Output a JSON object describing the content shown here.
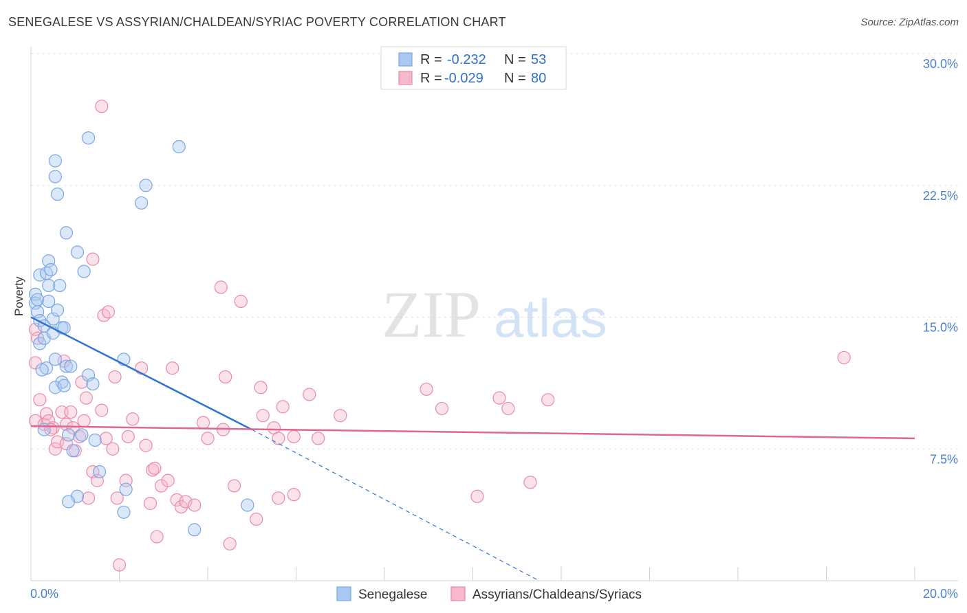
{
  "title": "SENEGALESE VS ASSYRIAN/CHALDEAN/SYRIAC POVERTY CORRELATION CHART",
  "source": "Source: ZipAtlas.com",
  "watermark": {
    "part1": "ZIP",
    "part2": "atlas"
  },
  "colors": {
    "blue_fill": "#aac8f0",
    "blue_stroke": "#7aa6e0",
    "blue_line": "#2e74d0",
    "pink_fill": "#f5b8cc",
    "pink_stroke": "#e88aa8",
    "pink_line": "#e0668f",
    "tick_text": "#4a7fd0"
  },
  "legend": {
    "rows": [
      {
        "r_label": "R =",
        "r_value": "-0.232",
        "n_label": "N =",
        "n_value": "53"
      },
      {
        "r_label": "R =",
        "r_value": "-0.029",
        "n_label": "N =",
        "n_value": "80"
      }
    ]
  },
  "chart_data": {
    "type": "scatter",
    "title": "SENEGALESE VS ASSYRIAN/CHALDEAN/SYRIAC POVERTY CORRELATION CHART",
    "xlabel": "",
    "ylabel": "Poverty",
    "xlim": [
      0,
      20
    ],
    "ylim": [
      0,
      30
    ],
    "x_tick_labels": [
      "0.0%",
      "20.0%"
    ],
    "y_ticks": [
      7.5,
      15.0,
      22.5,
      30.0
    ],
    "y_tick_labels": [
      "7.5%",
      "15.0%",
      "22.5%",
      "30.0%"
    ],
    "grid": true,
    "legend_position": "top-center",
    "series": [
      {
        "name": "Senegalese",
        "r": -0.232,
        "n": 53,
        "trend": {
          "x": [
            0.0,
            5.0
          ],
          "y": [
            15.0,
            8.6
          ],
          "dashed_to": [
            11.5,
            0
          ]
        },
        "points": [
          [
            0.1,
            16.3
          ],
          [
            0.1,
            15.8
          ],
          [
            0.15,
            15.3
          ],
          [
            0.2,
            14.8
          ],
          [
            0.2,
            13.5
          ],
          [
            0.15,
            16.0
          ],
          [
            0.2,
            17.4
          ],
          [
            0.3,
            13.8
          ],
          [
            0.35,
            17.5
          ],
          [
            0.4,
            16.8
          ],
          [
            0.4,
            15.9
          ],
          [
            0.3,
            14.5
          ],
          [
            0.5,
            14.1
          ],
          [
            0.5,
            14.9
          ],
          [
            0.6,
            15.4
          ],
          [
            0.7,
            14.4
          ],
          [
            0.75,
            14.4
          ],
          [
            0.4,
            18.2
          ],
          [
            0.45,
            17.7
          ],
          [
            0.65,
            16.8
          ],
          [
            0.55,
            12.6
          ],
          [
            0.35,
            12.1
          ],
          [
            0.25,
            12.0
          ],
          [
            0.8,
            12.2
          ],
          [
            0.9,
            12.2
          ],
          [
            0.7,
            11.3
          ],
          [
            0.55,
            11.0
          ],
          [
            0.75,
            11.1
          ],
          [
            0.8,
            19.8
          ],
          [
            1.05,
            18.7
          ],
          [
            1.2,
            17.6
          ],
          [
            0.55,
            23.0
          ],
          [
            0.55,
            23.9
          ],
          [
            0.6,
            22.0
          ],
          [
            1.3,
            25.2
          ],
          [
            3.35,
            24.7
          ],
          [
            2.6,
            22.5
          ],
          [
            2.5,
            21.5
          ],
          [
            1.3,
            11.7
          ],
          [
            1.4,
            11.2
          ],
          [
            2.1,
            12.6
          ],
          [
            0.3,
            8.6
          ],
          [
            0.85,
            8.3
          ],
          [
            1.15,
            8.3
          ],
          [
            1.45,
            8.0
          ],
          [
            0.95,
            7.4
          ],
          [
            1.55,
            6.2
          ],
          [
            2.15,
            5.2
          ],
          [
            1.05,
            4.8
          ],
          [
            0.85,
            4.5
          ],
          [
            2.1,
            3.9
          ],
          [
            4.9,
            4.3
          ],
          [
            3.7,
            2.9
          ]
        ]
      },
      {
        "name": "Assyrians/Chaldeans/Syriacs",
        "r": -0.029,
        "n": 80,
        "trend": {
          "x": [
            0.0,
            20.0
          ],
          "y": [
            8.8,
            8.1
          ]
        },
        "points": [
          [
            0.1,
            14.3
          ],
          [
            0.15,
            13.8
          ],
          [
            0.1,
            12.4
          ],
          [
            0.2,
            10.3
          ],
          [
            0.1,
            9.1
          ],
          [
            0.3,
            8.9
          ],
          [
            0.35,
            9.5
          ],
          [
            0.4,
            9.1
          ],
          [
            0.5,
            8.7
          ],
          [
            0.45,
            8.6
          ],
          [
            0.55,
            7.5
          ],
          [
            0.6,
            7.9
          ],
          [
            0.7,
            9.6
          ],
          [
            0.8,
            8.9
          ],
          [
            0.8,
            7.8
          ],
          [
            0.9,
            9.6
          ],
          [
            0.95,
            8.7
          ],
          [
            1.1,
            8.2
          ],
          [
            1.0,
            7.4
          ],
          [
            1.2,
            9.1
          ],
          [
            1.25,
            10.4
          ],
          [
            1.15,
            11.3
          ],
          [
            0.75,
            12.5
          ],
          [
            1.4,
            18.3
          ],
          [
            1.65,
            15.1
          ],
          [
            1.75,
            15.3
          ],
          [
            1.6,
            9.7
          ],
          [
            1.9,
            11.6
          ],
          [
            1.4,
            6.2
          ],
          [
            1.5,
            5.7
          ],
          [
            1.3,
            4.7
          ],
          [
            1.7,
            8.1
          ],
          [
            1.85,
            7.5
          ],
          [
            1.95,
            4.7
          ],
          [
            2.15,
            5.7
          ],
          [
            2.2,
            8.2
          ],
          [
            2.3,
            9.2
          ],
          [
            2.5,
            12.1
          ],
          [
            2.6,
            7.7
          ],
          [
            2.7,
            4.4
          ],
          [
            2.75,
            6.3
          ],
          [
            2.8,
            6.4
          ],
          [
            2.95,
            5.4
          ],
          [
            3.1,
            5.7
          ],
          [
            3.2,
            12.1
          ],
          [
            3.3,
            4.6
          ],
          [
            3.4,
            4.2
          ],
          [
            3.5,
            4.5
          ],
          [
            3.7,
            4.3
          ],
          [
            3.9,
            9.0
          ],
          [
            4.0,
            8.1
          ],
          [
            4.3,
            16.7
          ],
          [
            4.35,
            8.6
          ],
          [
            4.4,
            11.6
          ],
          [
            4.5,
            2.1
          ],
          [
            4.6,
            5.4
          ],
          [
            4.75,
            15.9
          ],
          [
            5.1,
            3.5
          ],
          [
            5.2,
            11.0
          ],
          [
            5.25,
            9.4
          ],
          [
            5.5,
            8.7
          ],
          [
            5.6,
            8.1
          ],
          [
            5.6,
            4.7
          ],
          [
            5.7,
            9.9
          ],
          [
            5.95,
            8.2
          ],
          [
            5.95,
            4.9
          ],
          [
            6.3,
            10.6
          ],
          [
            6.5,
            8.1
          ],
          [
            7.0,
            9.4
          ],
          [
            8.95,
            10.9
          ],
          [
            9.3,
            9.8
          ],
          [
            10.1,
            4.8
          ],
          [
            10.6,
            10.4
          ],
          [
            10.8,
            9.8
          ],
          [
            11.3,
            5.6
          ],
          [
            11.7,
            10.3
          ],
          [
            18.4,
            12.7
          ],
          [
            1.6,
            27.0
          ],
          [
            2.0,
            0.9
          ],
          [
            2.85,
            2.5
          ]
        ]
      }
    ]
  },
  "bottom_legend": [
    {
      "label": "Senegalese"
    },
    {
      "label": "Assyrians/Chaldeans/Syriacs"
    }
  ]
}
